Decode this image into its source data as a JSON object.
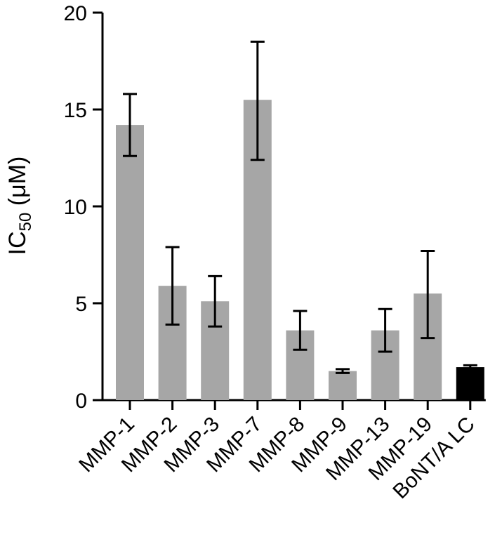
{
  "chart_data": {
    "type": "bar",
    "ylabel_main": "IC",
    "ylabel_sub": "50",
    "ylabel_unit": " (μM)",
    "categories": [
      "MMP-1",
      "MMP-2",
      "MMP-3",
      "MMP-7",
      "MMP-8",
      "MMP-9",
      "MMP-13",
      "MMP-19",
      "BoNT/A LC"
    ],
    "values": [
      14.2,
      5.9,
      5.1,
      15.5,
      3.6,
      1.5,
      3.6,
      5.5,
      1.7
    ],
    "error_low": [
      12.6,
      3.9,
      3.8,
      12.4,
      2.6,
      1.4,
      2.5,
      3.2,
      1.6
    ],
    "error_high": [
      15.8,
      7.9,
      6.4,
      18.5,
      4.6,
      1.6,
      4.7,
      7.7,
      1.8
    ],
    "bar_colors": [
      "#a6a6a6",
      "#a6a6a6",
      "#a6a6a6",
      "#a6a6a6",
      "#a6a6a6",
      "#a6a6a6",
      "#a6a6a6",
      "#a6a6a6",
      "#000000"
    ],
    "ylim": [
      0,
      20
    ],
    "yticks": [
      0,
      5,
      10,
      15,
      20
    ],
    "ytick_labels": [
      "0",
      "5",
      "10",
      "15",
      "20"
    ],
    "grid": false,
    "legend": false
  }
}
